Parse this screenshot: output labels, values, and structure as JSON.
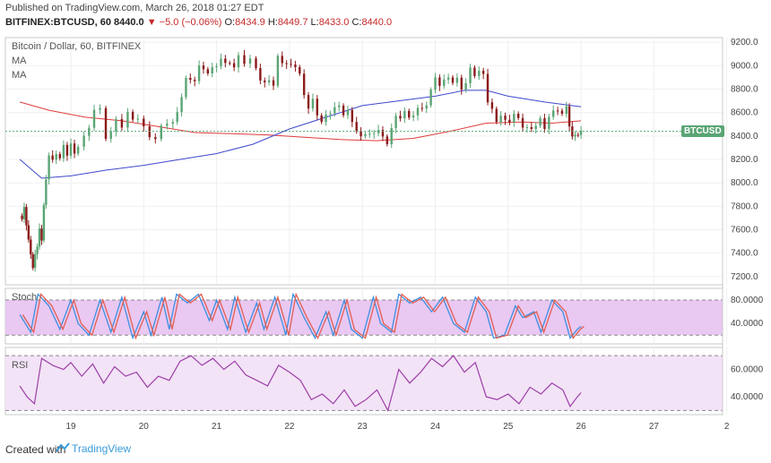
{
  "header": {
    "published": "Published on TradingView.com, March 26, 2018 01:27 EDT",
    "symbol": "BITFINEX:BTCUSD, 60",
    "last": "8440.0",
    "change": "▼ −5.0 (−0.06%)",
    "open_k": "O:",
    "open_v": "8434.9",
    "high_k": "H:",
    "high_v": "8449.7",
    "low_k": "L:",
    "low_v": "8433.0",
    "close_k": "C:",
    "close_v": "8440.0"
  },
  "legend": {
    "title": "Bitcoin / Dollar, 60, BITFINEX",
    "ma1": "MA",
    "ma2": "MA",
    "stoch": "Stoch",
    "rsi": "RSI",
    "price_tag": "BTCUSD"
  },
  "footer": {
    "created": "Created with",
    "brand": "TradingView"
  },
  "colors": {
    "up": "#5aa574",
    "down": "#8b1a1a",
    "ma_slow": "#3f48cc",
    "ma_fast": "#e23b3b",
    "stoch_k": "#3b8fe0",
    "stoch_d": "#e35d50",
    "rsi": "#9b3fa6",
    "band_fill": "#e9c8f2",
    "price_line": "#5aa574"
  },
  "chart_data": {
    "type": "candlestick",
    "title": "Bitcoin / Dollar, 60, BITFINEX",
    "x_ticks": [
      "19",
      "20",
      "21",
      "22",
      "23",
      "24",
      "25",
      "26",
      "27",
      "2"
    ],
    "price_axis": {
      "ticks": [
        "9200.0",
        "9000.0",
        "8800.0",
        "8600.0",
        "8400.0",
        "8200.0",
        "8000.0",
        "7800.0",
        "7600.0",
        "7400.0",
        "7200.0"
      ],
      "range": [
        7130,
        9240
      ]
    },
    "last_price": 8440.0,
    "close_path": [
      [
        18.33,
        7720
      ],
      [
        18.36,
        7800
      ],
      [
        18.39,
        7620
      ],
      [
        18.42,
        7540
      ],
      [
        18.45,
        7390
      ],
      [
        18.48,
        7250
      ],
      [
        18.51,
        7410
      ],
      [
        18.54,
        7450
      ],
      [
        18.57,
        7580
      ],
      [
        18.6,
        7520
      ],
      [
        18.63,
        7800
      ],
      [
        18.66,
        8060
      ],
      [
        18.7,
        8240
      ],
      [
        18.75,
        8180
      ],
      [
        18.8,
        8270
      ],
      [
        18.85,
        8210
      ],
      [
        18.9,
        8300
      ],
      [
        18.95,
        8250
      ],
      [
        19.0,
        8330
      ],
      [
        19.05,
        8220
      ],
      [
        19.1,
        8320
      ],
      [
        19.18,
        8390
      ],
      [
        19.25,
        8500
      ],
      [
        19.32,
        8630
      ],
      [
        19.4,
        8620
      ],
      [
        19.48,
        8400
      ],
      [
        19.55,
        8440
      ],
      [
        19.62,
        8520
      ],
      [
        19.7,
        8490
      ],
      [
        19.78,
        8600
      ],
      [
        19.85,
        8510
      ],
      [
        19.92,
        8560
      ],
      [
        20.0,
        8470
      ],
      [
        20.08,
        8420
      ],
      [
        20.16,
        8380
      ],
      [
        20.24,
        8470
      ],
      [
        20.32,
        8530
      ],
      [
        20.4,
        8520
      ],
      [
        20.46,
        8580
      ],
      [
        20.52,
        8750
      ],
      [
        20.58,
        8890
      ],
      [
        20.64,
        8850
      ],
      [
        20.7,
        8880
      ],
      [
        20.76,
        8990
      ],
      [
        20.82,
        9000
      ],
      [
        20.88,
        8940
      ],
      [
        20.94,
        8970
      ],
      [
        21.0,
        9020
      ],
      [
        21.06,
        9060
      ],
      [
        21.12,
        9000
      ],
      [
        21.18,
        9040
      ],
      [
        21.24,
        8980
      ],
      [
        21.3,
        9060
      ],
      [
        21.38,
        9030
      ],
      [
        21.46,
        9050
      ],
      [
        21.54,
        9010
      ],
      [
        21.6,
        8880
      ],
      [
        21.66,
        8840
      ],
      [
        21.72,
        8900
      ],
      [
        21.78,
        8830
      ],
      [
        21.84,
        9060
      ],
      [
        21.9,
        9040
      ],
      [
        21.96,
        9010
      ],
      [
        22.02,
        8980
      ],
      [
        22.08,
        9000
      ],
      [
        22.14,
        8920
      ],
      [
        22.2,
        8780
      ],
      [
        22.26,
        8640
      ],
      [
        22.32,
        8700
      ],
      [
        22.38,
        8600
      ],
      [
        22.44,
        8520
      ],
      [
        22.5,
        8560
      ],
      [
        22.56,
        8610
      ],
      [
        22.62,
        8640
      ],
      [
        22.68,
        8630
      ],
      [
        22.74,
        8590
      ],
      [
        22.8,
        8610
      ],
      [
        22.86,
        8550
      ],
      [
        22.92,
        8450
      ],
      [
        22.98,
        8380
      ],
      [
        23.04,
        8440
      ],
      [
        23.1,
        8420
      ],
      [
        23.16,
        8400
      ],
      [
        23.22,
        8470
      ],
      [
        23.28,
        8390
      ],
      [
        23.34,
        8300
      ],
      [
        23.4,
        8480
      ],
      [
        23.46,
        8560
      ],
      [
        23.52,
        8580
      ],
      [
        23.58,
        8620
      ],
      [
        23.64,
        8540
      ],
      [
        23.7,
        8600
      ],
      [
        23.76,
        8640
      ],
      [
        23.82,
        8610
      ],
      [
        23.88,
        8680
      ],
      [
        23.94,
        8790
      ],
      [
        24.0,
        8870
      ],
      [
        24.06,
        8840
      ],
      [
        24.12,
        8870
      ],
      [
        24.18,
        8930
      ],
      [
        24.24,
        8860
      ],
      [
        24.3,
        8880
      ],
      [
        24.36,
        8820
      ],
      [
        24.42,
        8850
      ],
      [
        24.48,
        8960
      ],
      [
        24.54,
        8930
      ],
      [
        24.6,
        8950
      ],
      [
        24.66,
        8900
      ],
      [
        24.72,
        8700
      ],
      [
        24.78,
        8620
      ],
      [
        24.84,
        8550
      ],
      [
        24.9,
        8580
      ],
      [
        24.96,
        8520
      ],
      [
        25.02,
        8540
      ],
      [
        25.08,
        8590
      ],
      [
        25.14,
        8530
      ],
      [
        25.2,
        8490
      ],
      [
        25.26,
        8470
      ],
      [
        25.32,
        8430
      ],
      [
        25.38,
        8500
      ],
      [
        25.44,
        8540
      ],
      [
        25.5,
        8490
      ],
      [
        25.56,
        8570
      ],
      [
        25.62,
        8600
      ],
      [
        25.68,
        8640
      ],
      [
        25.74,
        8590
      ],
      [
        25.8,
        8630
      ],
      [
        25.84,
        8500
      ],
      [
        25.88,
        8390
      ],
      [
        25.92,
        8380
      ],
      [
        25.96,
        8420
      ],
      [
        26.0,
        8435
      ]
    ],
    "ma_slow": [
      [
        18.3,
        8200
      ],
      [
        18.6,
        8040
      ],
      [
        19.0,
        8060
      ],
      [
        19.5,
        8110
      ],
      [
        20.0,
        8150
      ],
      [
        20.5,
        8200
      ],
      [
        21.0,
        8250
      ],
      [
        21.5,
        8330
      ],
      [
        22.0,
        8460
      ],
      [
        22.5,
        8560
      ],
      [
        23.0,
        8660
      ],
      [
        23.5,
        8700
      ],
      [
        24.0,
        8740
      ],
      [
        24.4,
        8790
      ],
      [
        24.7,
        8790
      ],
      [
        25.0,
        8740
      ],
      [
        25.5,
        8690
      ],
      [
        26.0,
        8650
      ]
    ],
    "ma_fast": [
      [
        18.3,
        8690
      ],
      [
        18.7,
        8620
      ],
      [
        19.2,
        8560
      ],
      [
        19.7,
        8530
      ],
      [
        20.2,
        8480
      ],
      [
        20.7,
        8430
      ],
      [
        21.2,
        8420
      ],
      [
        21.7,
        8410
      ],
      [
        22.2,
        8390
      ],
      [
        22.7,
        8370
      ],
      [
        23.2,
        8360
      ],
      [
        23.7,
        8380
      ],
      [
        24.2,
        8440
      ],
      [
        24.7,
        8510
      ],
      [
        25.2,
        8520
      ],
      [
        25.6,
        8510
      ],
      [
        26.0,
        8530
      ]
    ],
    "stoch": {
      "levels": [
        80.0,
        20.0
      ],
      "axis_ticks": [
        "80.0000",
        "40.0000"
      ],
      "range": [
        5,
        100
      ],
      "k": [
        [
          18.3,
          55
        ],
        [
          18.45,
          25
        ],
        [
          18.55,
          90
        ],
        [
          18.7,
          70
        ],
        [
          18.85,
          30
        ],
        [
          19.0,
          80
        ],
        [
          19.1,
          40
        ],
        [
          19.25,
          20
        ],
        [
          19.4,
          80
        ],
        [
          19.55,
          25
        ],
        [
          19.7,
          85
        ],
        [
          19.85,
          15
        ],
        [
          20.0,
          60
        ],
        [
          20.1,
          20
        ],
        [
          20.25,
          85
        ],
        [
          20.35,
          30
        ],
        [
          20.45,
          90
        ],
        [
          20.6,
          75
        ],
        [
          20.75,
          90
        ],
        [
          20.9,
          45
        ],
        [
          21.0,
          80
        ],
        [
          21.15,
          30
        ],
        [
          21.25,
          85
        ],
        [
          21.4,
          25
        ],
        [
          21.55,
          75
        ],
        [
          21.65,
          30
        ],
        [
          21.8,
          85
        ],
        [
          21.95,
          20
        ],
        [
          22.05,
          90
        ],
        [
          22.2,
          50
        ],
        [
          22.35,
          15
        ],
        [
          22.5,
          60
        ],
        [
          22.6,
          20
        ],
        [
          22.75,
          80
        ],
        [
          22.85,
          30
        ],
        [
          23.0,
          15
        ],
        [
          23.15,
          85
        ],
        [
          23.25,
          40
        ],
        [
          23.4,
          25
        ],
        [
          23.5,
          90
        ],
        [
          23.65,
          75
        ],
        [
          23.8,
          85
        ],
        [
          23.95,
          60
        ],
        [
          24.1,
          85
        ],
        [
          24.25,
          40
        ],
        [
          24.4,
          25
        ],
        [
          24.55,
          85
        ],
        [
          24.7,
          60
        ],
        [
          24.8,
          15
        ],
        [
          24.95,
          20
        ],
        [
          25.1,
          70
        ],
        [
          25.2,
          50
        ],
        [
          25.35,
          60
        ],
        [
          25.45,
          25
        ],
        [
          25.6,
          80
        ],
        [
          25.75,
          60
        ],
        [
          25.85,
          15
        ],
        [
          25.95,
          30
        ],
        [
          26.0,
          35
        ]
      ]
    },
    "rsi": {
      "levels": [
        70,
        30
      ],
      "axis_ticks": [
        "60.0000",
        "40.0000"
      ],
      "range": [
        27,
        76
      ],
      "values": [
        [
          18.3,
          48
        ],
        [
          18.4,
          40
        ],
        [
          18.5,
          35
        ],
        [
          18.6,
          68
        ],
        [
          18.75,
          63
        ],
        [
          18.9,
          60
        ],
        [
          19.0,
          65
        ],
        [
          19.15,
          55
        ],
        [
          19.3,
          64
        ],
        [
          19.45,
          50
        ],
        [
          19.6,
          62
        ],
        [
          19.75,
          55
        ],
        [
          19.9,
          58
        ],
        [
          20.05,
          47
        ],
        [
          20.2,
          55
        ],
        [
          20.35,
          52
        ],
        [
          20.5,
          66
        ],
        [
          20.65,
          70
        ],
        [
          20.8,
          63
        ],
        [
          20.95,
          68
        ],
        [
          21.1,
          60
        ],
        [
          21.25,
          66
        ],
        [
          21.4,
          56
        ],
        [
          21.55,
          52
        ],
        [
          21.7,
          48
        ],
        [
          21.85,
          63
        ],
        [
          22.0,
          58
        ],
        [
          22.15,
          52
        ],
        [
          22.3,
          38
        ],
        [
          22.45,
          42
        ],
        [
          22.6,
          35
        ],
        [
          22.75,
          45
        ],
        [
          22.9,
          33
        ],
        [
          23.05,
          38
        ],
        [
          23.2,
          45
        ],
        [
          23.35,
          30
        ],
        [
          23.5,
          60
        ],
        [
          23.65,
          50
        ],
        [
          23.8,
          58
        ],
        [
          23.95,
          68
        ],
        [
          24.1,
          62
        ],
        [
          24.25,
          70
        ],
        [
          24.4,
          58
        ],
        [
          24.55,
          65
        ],
        [
          24.7,
          40
        ],
        [
          24.85,
          38
        ],
        [
          25.0,
          42
        ],
        [
          25.15,
          35
        ],
        [
          25.3,
          47
        ],
        [
          25.45,
          42
        ],
        [
          25.6,
          50
        ],
        [
          25.75,
          45
        ],
        [
          25.85,
          33
        ],
        [
          25.95,
          40
        ],
        [
          26.0,
          43
        ]
      ]
    }
  }
}
